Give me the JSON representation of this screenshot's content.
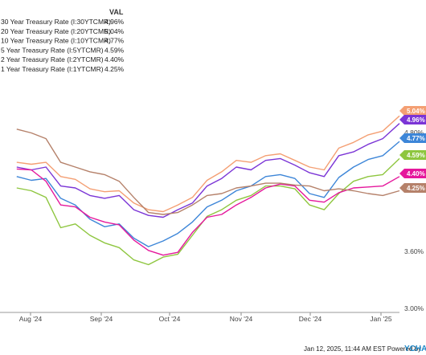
{
  "legend": {
    "value_header": "VAL",
    "items": [
      {
        "label": "30 Year Treasury Rate (I:30YTCMR)",
        "value": "4.96%"
      },
      {
        "label": "20 Year Treasury Rate (I:20YTCMR)",
        "value": "5.04%"
      },
      {
        "label": "10 Year Treasury Rate (I:10YTCMR)",
        "value": "4.77%"
      },
      {
        "label": "5 Year Treasury Rate (I:5YTCMR)",
        "value": "4.59%"
      },
      {
        "label": "2 Year Treasury Rate (I:2YTCMR)",
        "value": "4.40%"
      },
      {
        "label": "1 Year Treasury Rate (I:1YTCMR)",
        "value": "4.25%"
      }
    ]
  },
  "footer": {
    "timestamp": "Jan 12, 2025, 11:44 AM EST Powered by",
    "brand": "YCHA"
  },
  "chart_data": {
    "type": "line",
    "title": "",
    "xlabel": "",
    "ylabel": "",
    "x_ticks": [
      "Aug '24",
      "Sep '24",
      "Oct '24",
      "Nov '24",
      "Dec '24",
      "Jan '25"
    ],
    "y_ticks": [
      "3.00%",
      "3.60%",
      "4.80%"
    ],
    "ylim": [
      3.0,
      5.2
    ],
    "grid": false,
    "legend_position": "top-left",
    "x": [
      "2024-07-11",
      "2024-07-18",
      "2024-07-25",
      "2024-08-01",
      "2024-08-08",
      "2024-08-15",
      "2024-08-22",
      "2024-08-29",
      "2024-09-05",
      "2024-09-12",
      "2024-09-19",
      "2024-09-26",
      "2024-10-03",
      "2024-10-10",
      "2024-10-17",
      "2024-10-24",
      "2024-10-31",
      "2024-11-07",
      "2024-11-14",
      "2024-11-21",
      "2024-11-28",
      "2024-12-05",
      "2024-12-12",
      "2024-12-19",
      "2024-12-26",
      "2025-01-02",
      "2025-01-10"
    ],
    "series": [
      {
        "name": "30 Year Treasury Rate (I:30YTCMR)",
        "color": "#7b35d6",
        "end_label": "4.96%",
        "values": [
          4.5,
          4.47,
          4.5,
          4.3,
          4.28,
          4.2,
          4.17,
          4.2,
          4.05,
          3.99,
          3.97,
          4.05,
          4.12,
          4.3,
          4.38,
          4.5,
          4.47,
          4.57,
          4.59,
          4.52,
          4.44,
          4.4,
          4.62,
          4.66,
          4.74,
          4.8,
          4.96
        ]
      },
      {
        "name": "20 Year Treasury Rate (I:20YTCMR)",
        "color": "#f49f73",
        "end_label": "5.04%",
        "values": [
          4.55,
          4.53,
          4.55,
          4.4,
          4.37,
          4.27,
          4.24,
          4.25,
          4.12,
          4.05,
          4.03,
          4.1,
          4.18,
          4.36,
          4.45,
          4.57,
          4.55,
          4.62,
          4.64,
          4.57,
          4.5,
          4.47,
          4.7,
          4.76,
          4.84,
          4.88,
          5.04
        ]
      },
      {
        "name": "10 Year Treasury Rate (I:10YTCMR)",
        "color": "#3d86d8",
        "end_label": "4.77%",
        "values": [
          4.4,
          4.36,
          4.38,
          4.17,
          4.1,
          3.95,
          3.87,
          3.9,
          3.75,
          3.66,
          3.72,
          3.8,
          3.92,
          4.08,
          4.15,
          4.25,
          4.3,
          4.4,
          4.42,
          4.38,
          4.22,
          4.18,
          4.39,
          4.5,
          4.58,
          4.62,
          4.77
        ]
      },
      {
        "name": "5 Year Treasury Rate (I:5YTCMR)",
        "color": "#8ec63f",
        "end_label": "4.59%",
        "values": [
          4.28,
          4.25,
          4.18,
          3.86,
          3.9,
          3.78,
          3.7,
          3.65,
          3.52,
          3.47,
          3.55,
          3.58,
          3.78,
          3.98,
          4.05,
          4.15,
          4.2,
          4.3,
          4.3,
          4.27,
          4.1,
          4.05,
          4.22,
          4.35,
          4.4,
          4.42,
          4.59
        ]
      },
      {
        "name": "2 Year Treasury Rate (I:2YTCMR)",
        "color": "#e5189c",
        "end_label": "4.40%",
        "values": [
          4.48,
          4.47,
          4.35,
          4.1,
          4.08,
          3.97,
          3.92,
          3.89,
          3.73,
          3.62,
          3.57,
          3.6,
          3.81,
          3.97,
          4.0,
          4.1,
          4.18,
          4.28,
          4.32,
          4.3,
          4.15,
          4.13,
          4.23,
          4.28,
          4.29,
          4.3,
          4.4
        ]
      },
      {
        "name": "1 Year Treasury Rate (I:1YTCMR)",
        "color": "#b5816a",
        "end_label": "4.25%",
        "values": [
          4.9,
          4.86,
          4.8,
          4.55,
          4.5,
          4.45,
          4.42,
          4.35,
          4.18,
          4.02,
          4.0,
          4.02,
          4.1,
          4.2,
          4.22,
          4.28,
          4.3,
          4.33,
          4.33,
          4.31,
          4.3,
          4.25,
          4.27,
          4.25,
          4.22,
          4.2,
          4.25
        ]
      }
    ]
  }
}
